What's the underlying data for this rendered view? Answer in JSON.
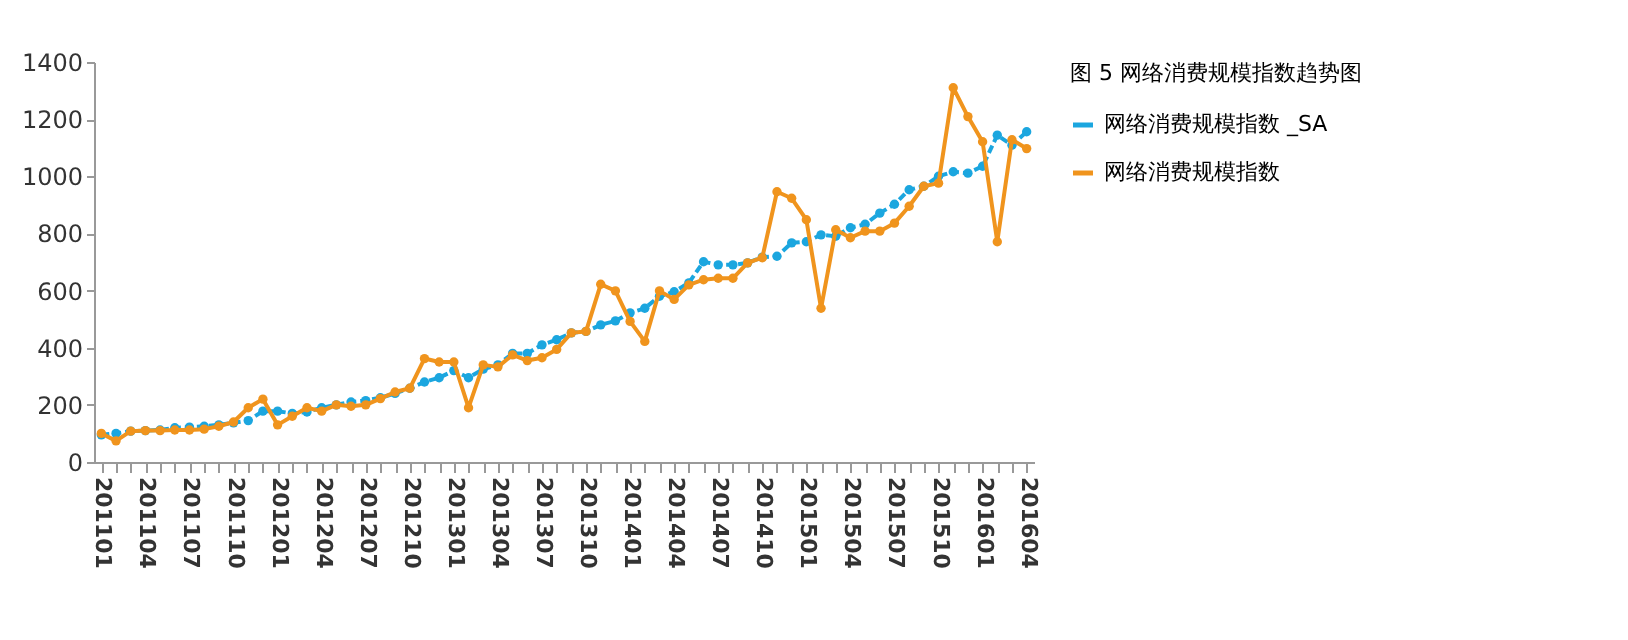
{
  "chart_data": {
    "type": "line",
    "title": "图 5 网络消费规模指数趋势图",
    "categories": [
      "201101",
      null,
      null,
      "201104",
      null,
      null,
      "201107",
      null,
      null,
      "201110",
      null,
      null,
      "201201",
      null,
      null,
      "201204",
      null,
      null,
      "201207",
      null,
      null,
      "201210",
      null,
      null,
      "201301",
      null,
      null,
      "201304",
      null,
      null,
      "201307",
      null,
      null,
      "201310",
      null,
      null,
      "201401",
      null,
      null,
      "201404",
      null,
      null,
      "201407",
      null,
      null,
      "201410",
      null,
      null,
      "201501",
      null,
      null,
      "201504",
      null,
      null,
      "201507",
      null,
      null,
      "201510",
      null,
      null,
      "201601",
      null,
      null,
      "201604"
    ],
    "series": [
      {
        "name": "网络消费规模指数 _SA",
        "color": "#1ba6df",
        "line_style": "dashed",
        "values": [
          95,
          100,
          108,
          110,
          112,
          120,
          122,
          125,
          130,
          137,
          145,
          178,
          178,
          170,
          175,
          190,
          200,
          210,
          215,
          225,
          240,
          258,
          280,
          295,
          320,
          295,
          325,
          340,
          380,
          380,
          410,
          428,
          452,
          457,
          480,
          494,
          522,
          538,
          580,
          596,
          627,
          701,
          690,
          690,
          697,
          717,
          720,
          767,
          771,
          795,
          790,
          820,
          832,
          871,
          902,
          953,
          965,
          1000,
          1016,
          1011,
          1035,
          1144,
          1109,
          1156
        ]
      },
      {
        "name": "网络消费规模指数",
        "color": "#f0941d",
        "line_style": "solid",
        "values": [
          100,
          74,
          108,
          110,
          110,
          112,
          112,
          115,
          125,
          140,
          190,
          220,
          130,
          160,
          190,
          178,
          200,
          195,
          200,
          222,
          245,
          258,
          362,
          350,
          350,
          190,
          340,
          333,
          375,
          355,
          365,
          394,
          452,
          457,
          622,
          599,
          492,
          422,
          599,
          569,
          620,
          638,
          643,
          643,
          697,
          715,
          946,
          923,
          848,
          538,
          813,
          785,
          808,
          808,
          836,
          895,
          965,
          976,
          1310,
          1209,
          1121,
          771,
          1128,
          1097
        ]
      }
    ],
    "ylim": [
      0,
      1400
    ],
    "yticks": [
      0,
      200,
      400,
      600,
      800,
      1000,
      1200,
      1400
    ],
    "grid": false,
    "legend": "right",
    "marker": "circle"
  }
}
